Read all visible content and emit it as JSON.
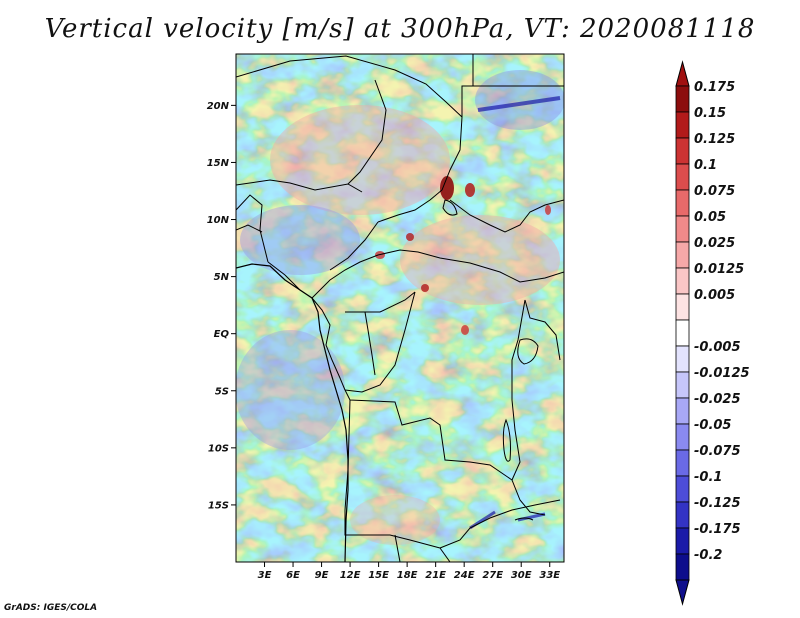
{
  "title": "Vertical velocity [m/s] at 300hPa, VT: 2020081118",
  "footer": "GrADS: IGES/COLA",
  "map": {
    "lon_range": [
      0,
      34.5
    ],
    "lat_range": [
      -20,
      24.5
    ],
    "lat_ticks": [
      {
        "value": 20,
        "label": "20N"
      },
      {
        "value": 15,
        "label": "15N"
      },
      {
        "value": 10,
        "label": "10N"
      },
      {
        "value": 5,
        "label": "5N"
      },
      {
        "value": 0,
        "label": "EQ"
      },
      {
        "value": -5,
        "label": "5S"
      },
      {
        "value": -10,
        "label": "10S"
      },
      {
        "value": -15,
        "label": "15S"
      }
    ],
    "lon_ticks": [
      {
        "value": 3,
        "label": "3E"
      },
      {
        "value": 6,
        "label": "6E"
      },
      {
        "value": 9,
        "label": "9E"
      },
      {
        "value": 12,
        "label": "12E"
      },
      {
        "value": 15,
        "label": "15E"
      },
      {
        "value": 18,
        "label": "18E"
      },
      {
        "value": 21,
        "label": "21E"
      },
      {
        "value": 24,
        "label": "24E"
      },
      {
        "value": 27,
        "label": "27E"
      },
      {
        "value": 30,
        "label": "30E"
      },
      {
        "value": 33,
        "label": "33E"
      }
    ]
  },
  "colorbar": {
    "levels": [
      {
        "label": "0.175",
        "color": "#8c0d0d"
      },
      {
        "label": "0.15",
        "color": "#b21a1a"
      },
      {
        "label": "0.125",
        "color": "#cc3333"
      },
      {
        "label": "0.1",
        "color": "#dc4d4d"
      },
      {
        "label": "0.075",
        "color": "#e86a6a"
      },
      {
        "label": "0.05",
        "color": "#f08a8a"
      },
      {
        "label": "0.025",
        "color": "#f6a8a8"
      },
      {
        "label": "0.0125",
        "color": "#fac6c6"
      },
      {
        "label": "0.005",
        "color": "#fde3e3"
      },
      {
        "label": "",
        "color": "#ffffff"
      },
      {
        "label": "-0.005",
        "color": "#e3e3fd"
      },
      {
        "label": "-0.0125",
        "color": "#c6c6fa"
      },
      {
        "label": "-0.025",
        "color": "#a8a8f6"
      },
      {
        "label": "-0.05",
        "color": "#8a8af0"
      },
      {
        "label": "-0.075",
        "color": "#6a6ae6"
      },
      {
        "label": "-0.1",
        "color": "#4d4dd8"
      },
      {
        "label": "-0.125",
        "color": "#3333c4"
      },
      {
        "label": "-0.175",
        "color": "#1a1aa8"
      },
      {
        "label": "-0.2",
        "color": "#0d0d8c"
      }
    ],
    "top_color": "#a01010",
    "bottom_color": "#10108c"
  }
}
